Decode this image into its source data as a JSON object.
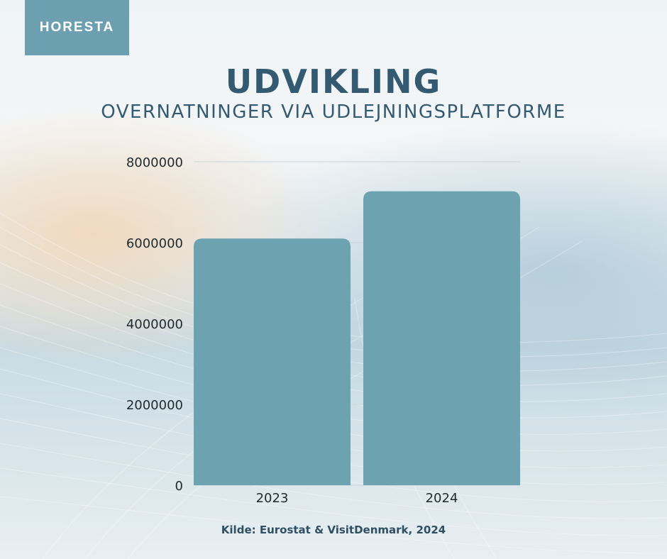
{
  "logo": {
    "text": "HORESTA"
  },
  "chart_data": {
    "type": "bar",
    "title": "UDVIKLING",
    "subtitle": "OVERNATNINGER VIA UDLEJNINGSPLATFORME",
    "categories": [
      "2023",
      "2024"
    ],
    "values": [
      6100000,
      7270000
    ],
    "ylim": [
      0,
      8000000
    ],
    "yticks": [
      "0",
      "2000000",
      "4000000",
      "6000000",
      "8000000"
    ],
    "grid": true,
    "bar_color": "#6da2b0"
  },
  "source": "Kilde: Eurostat & VisitDenmark, 2024"
}
